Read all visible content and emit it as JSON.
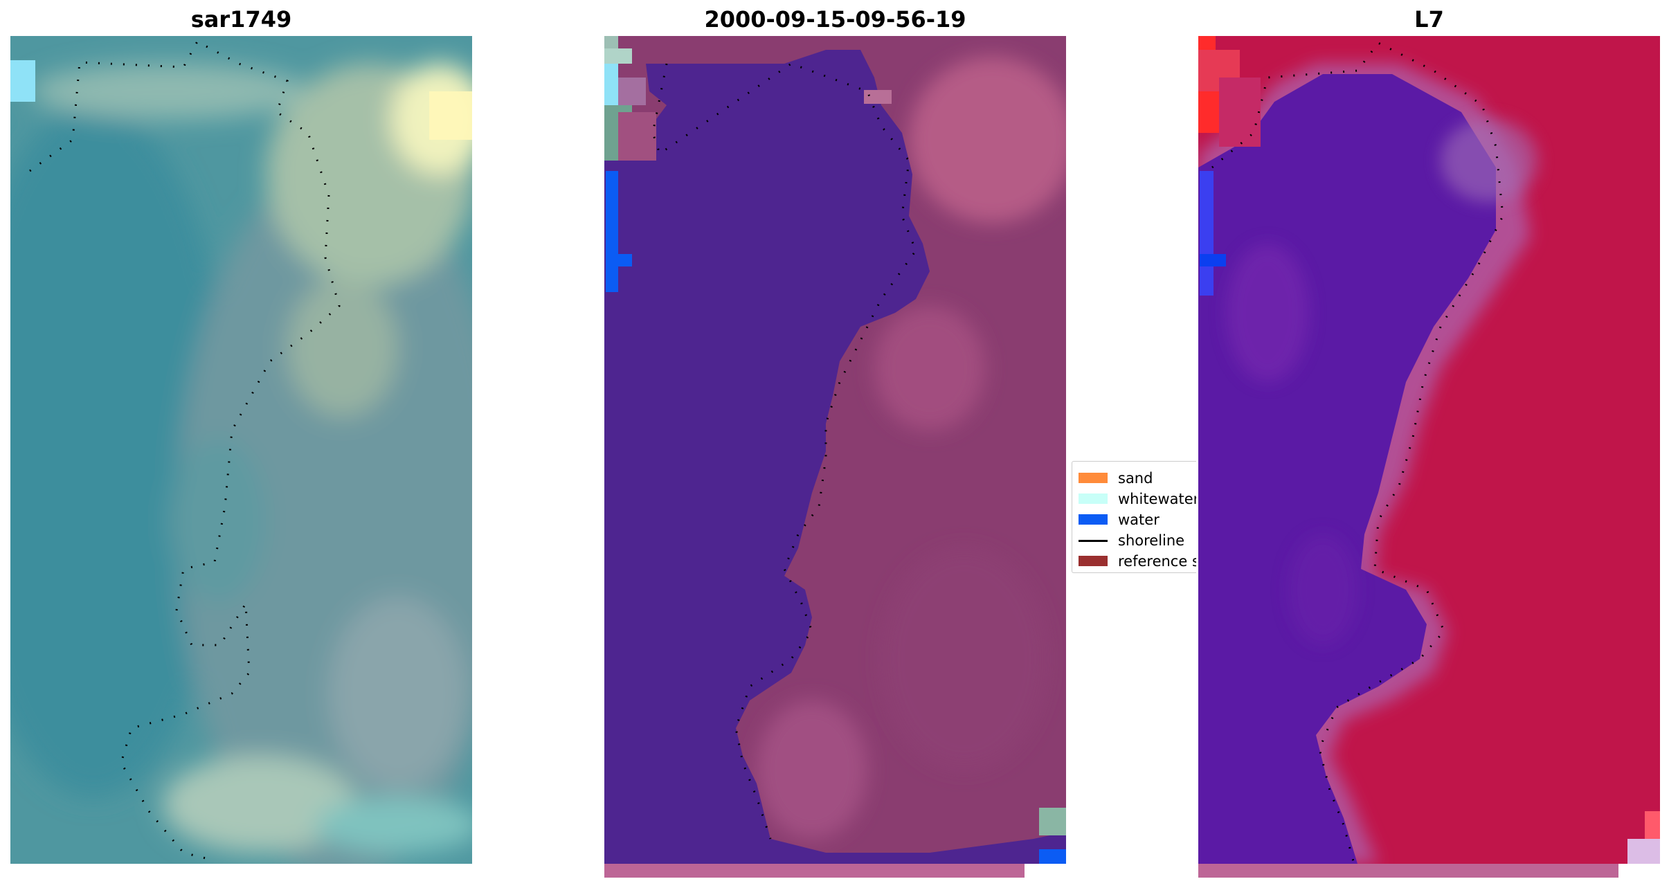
{
  "panels": [
    {
      "title": "sar1749",
      "palette": {
        "base": "#3f8f9a",
        "water": "#3a8a9b",
        "land": "#6f9aa0",
        "light": "#c8d8b0",
        "cyan": "#8fe2f7",
        "yellow": "#fff7b8"
      }
    },
    {
      "title": "2000-09-15-09-56-19",
      "palette": {
        "water_class": "#4e2590",
        "land": "#8a3d70",
        "land_light": "#a55281",
        "blue": "#0b5cf4",
        "cyan": "#8fe2f7",
        "strip": "#bd6596"
      }
    },
    {
      "title": "L7",
      "palette": {
        "water": "#5b1aa5",
        "water_dark": "#4e0fa0",
        "land": "#c0154a",
        "land_light": "#b03f7e",
        "edge": "#a456a8",
        "blue": "#0b3ff0",
        "red": "#ff2b2b",
        "strip": "#bd6596"
      }
    }
  ],
  "legend": {
    "items": [
      {
        "label": "sand",
        "kind": "patch",
        "color": "#ff8b3a"
      },
      {
        "label": "whitewater",
        "kind": "patch",
        "color": "#c8fff8"
      },
      {
        "label": "water",
        "kind": "patch",
        "color": "#0b5cf4"
      },
      {
        "label": "shoreline",
        "kind": "line",
        "color": "#000000"
      },
      {
        "label": "reference s",
        "kind": "patch",
        "color": "#9a2f2f"
      }
    ]
  }
}
